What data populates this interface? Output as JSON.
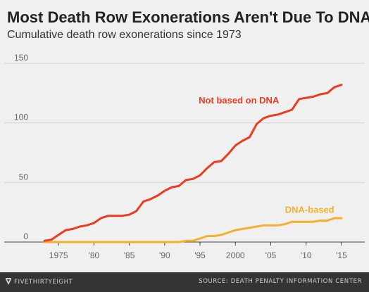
{
  "chart_data": {
    "type": "line",
    "title": "Most Death Row Exonerations Aren't Due To DNA",
    "subtitle": "Cumulative death row exonerations since 1973",
    "xlabel": "",
    "ylabel": "",
    "xlim": [
      1971.5,
      2016.5
    ],
    "ylim": [
      0,
      150
    ],
    "yticks": [
      0,
      50,
      100,
      150
    ],
    "ytick_labels": [
      "0",
      "50",
      "100",
      "150"
    ],
    "xticks": [
      1975,
      1980,
      1985,
      1990,
      1995,
      2000,
      2005,
      2010,
      2015
    ],
    "xtick_labels": [
      "1975",
      "'80",
      "'85",
      "'90",
      "'95",
      "2000",
      "'05",
      "'10",
      "'15"
    ],
    "grid": "horizontal",
    "series": [
      {
        "name": "Not based on DNA",
        "color": "#ed3b1f",
        "x": [
          1973,
          1974,
          1975,
          1976,
          1977,
          1978,
          1979,
          1980,
          1981,
          1982,
          1983,
          1984,
          1985,
          1986,
          1987,
          1988,
          1989,
          1990,
          1991,
          1992,
          1993,
          1994,
          1995,
          1996,
          1997,
          1998,
          1999,
          2000,
          2001,
          2002,
          2003,
          2004,
          2005,
          2006,
          2007,
          2008,
          2009,
          2010,
          2011,
          2012,
          2013,
          2014,
          2015
        ],
        "values": [
          1,
          2,
          6,
          10,
          11,
          13,
          14,
          16,
          20,
          22,
          22,
          22,
          23,
          26,
          34,
          36,
          39,
          43,
          46,
          47,
          52,
          53,
          56,
          62,
          67,
          68,
          74,
          81,
          85,
          88,
          99,
          104,
          106,
          107,
          109,
          111,
          120,
          121,
          122,
          124,
          125,
          130,
          132
        ]
      },
      {
        "name": "DNA-based",
        "color": "#f4b12a",
        "x": [
          1973,
          1992,
          1993,
          1994,
          1995,
          1996,
          1997,
          1998,
          1999,
          2000,
          2001,
          2002,
          2003,
          2004,
          2005,
          2006,
          2007,
          2008,
          2009,
          2010,
          2011,
          2012,
          2013,
          2014,
          2015
        ],
        "values": [
          0,
          0,
          1,
          1,
          3,
          5,
          5,
          6,
          8,
          10,
          11,
          12,
          13,
          14,
          14,
          14,
          15,
          17,
          17,
          17,
          17,
          18,
          18,
          20,
          20
        ]
      }
    ]
  },
  "footer": {
    "logo_text": "FIVETHIRTYEIGHT",
    "source": "SOURCE: DEATH PENALTY INFORMATION CENTER"
  }
}
